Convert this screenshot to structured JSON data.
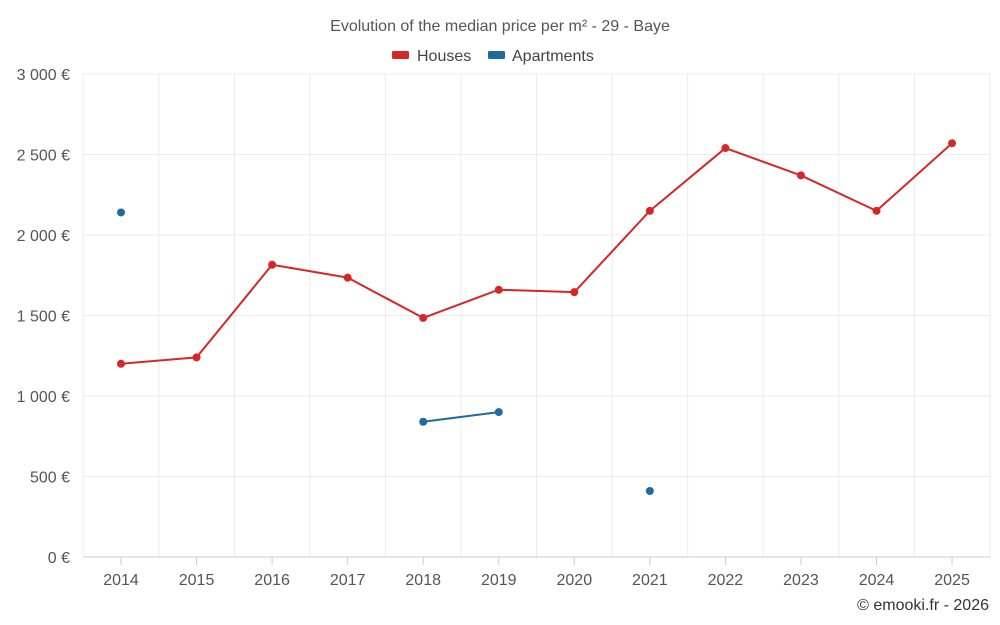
{
  "chart_data": {
    "type": "line",
    "title": "Evolution of the median price per m² - 29 - Baye",
    "categories": [
      "2014",
      "2015",
      "2016",
      "2017",
      "2018",
      "2019",
      "2020",
      "2021",
      "2022",
      "2023",
      "2024",
      "2025"
    ],
    "y_ticks": [
      0,
      500,
      1000,
      1500,
      2000,
      2500,
      3000
    ],
    "y_tick_labels": [
      "0 €",
      "500 €",
      "1 000 €",
      "1 500 €",
      "2 000 €",
      "2 500 €",
      "3 000 €"
    ],
    "ylim": [
      0,
      3000
    ],
    "xlabel": "",
    "ylabel": "",
    "grid": true,
    "legend_position": "top-center",
    "series": [
      {
        "name": "Houses",
        "color": "#d62728",
        "values": [
          1200,
          1240,
          1815,
          1735,
          1485,
          1660,
          1645,
          2150,
          2540,
          2370,
          2150,
          2570
        ]
      },
      {
        "name": "Apartments",
        "color": "#1f6aa0",
        "values": [
          2140,
          null,
          null,
          null,
          840,
          900,
          null,
          410,
          null,
          null,
          null,
          null
        ]
      }
    ]
  },
  "credit": "© emooki.fr - 2026"
}
